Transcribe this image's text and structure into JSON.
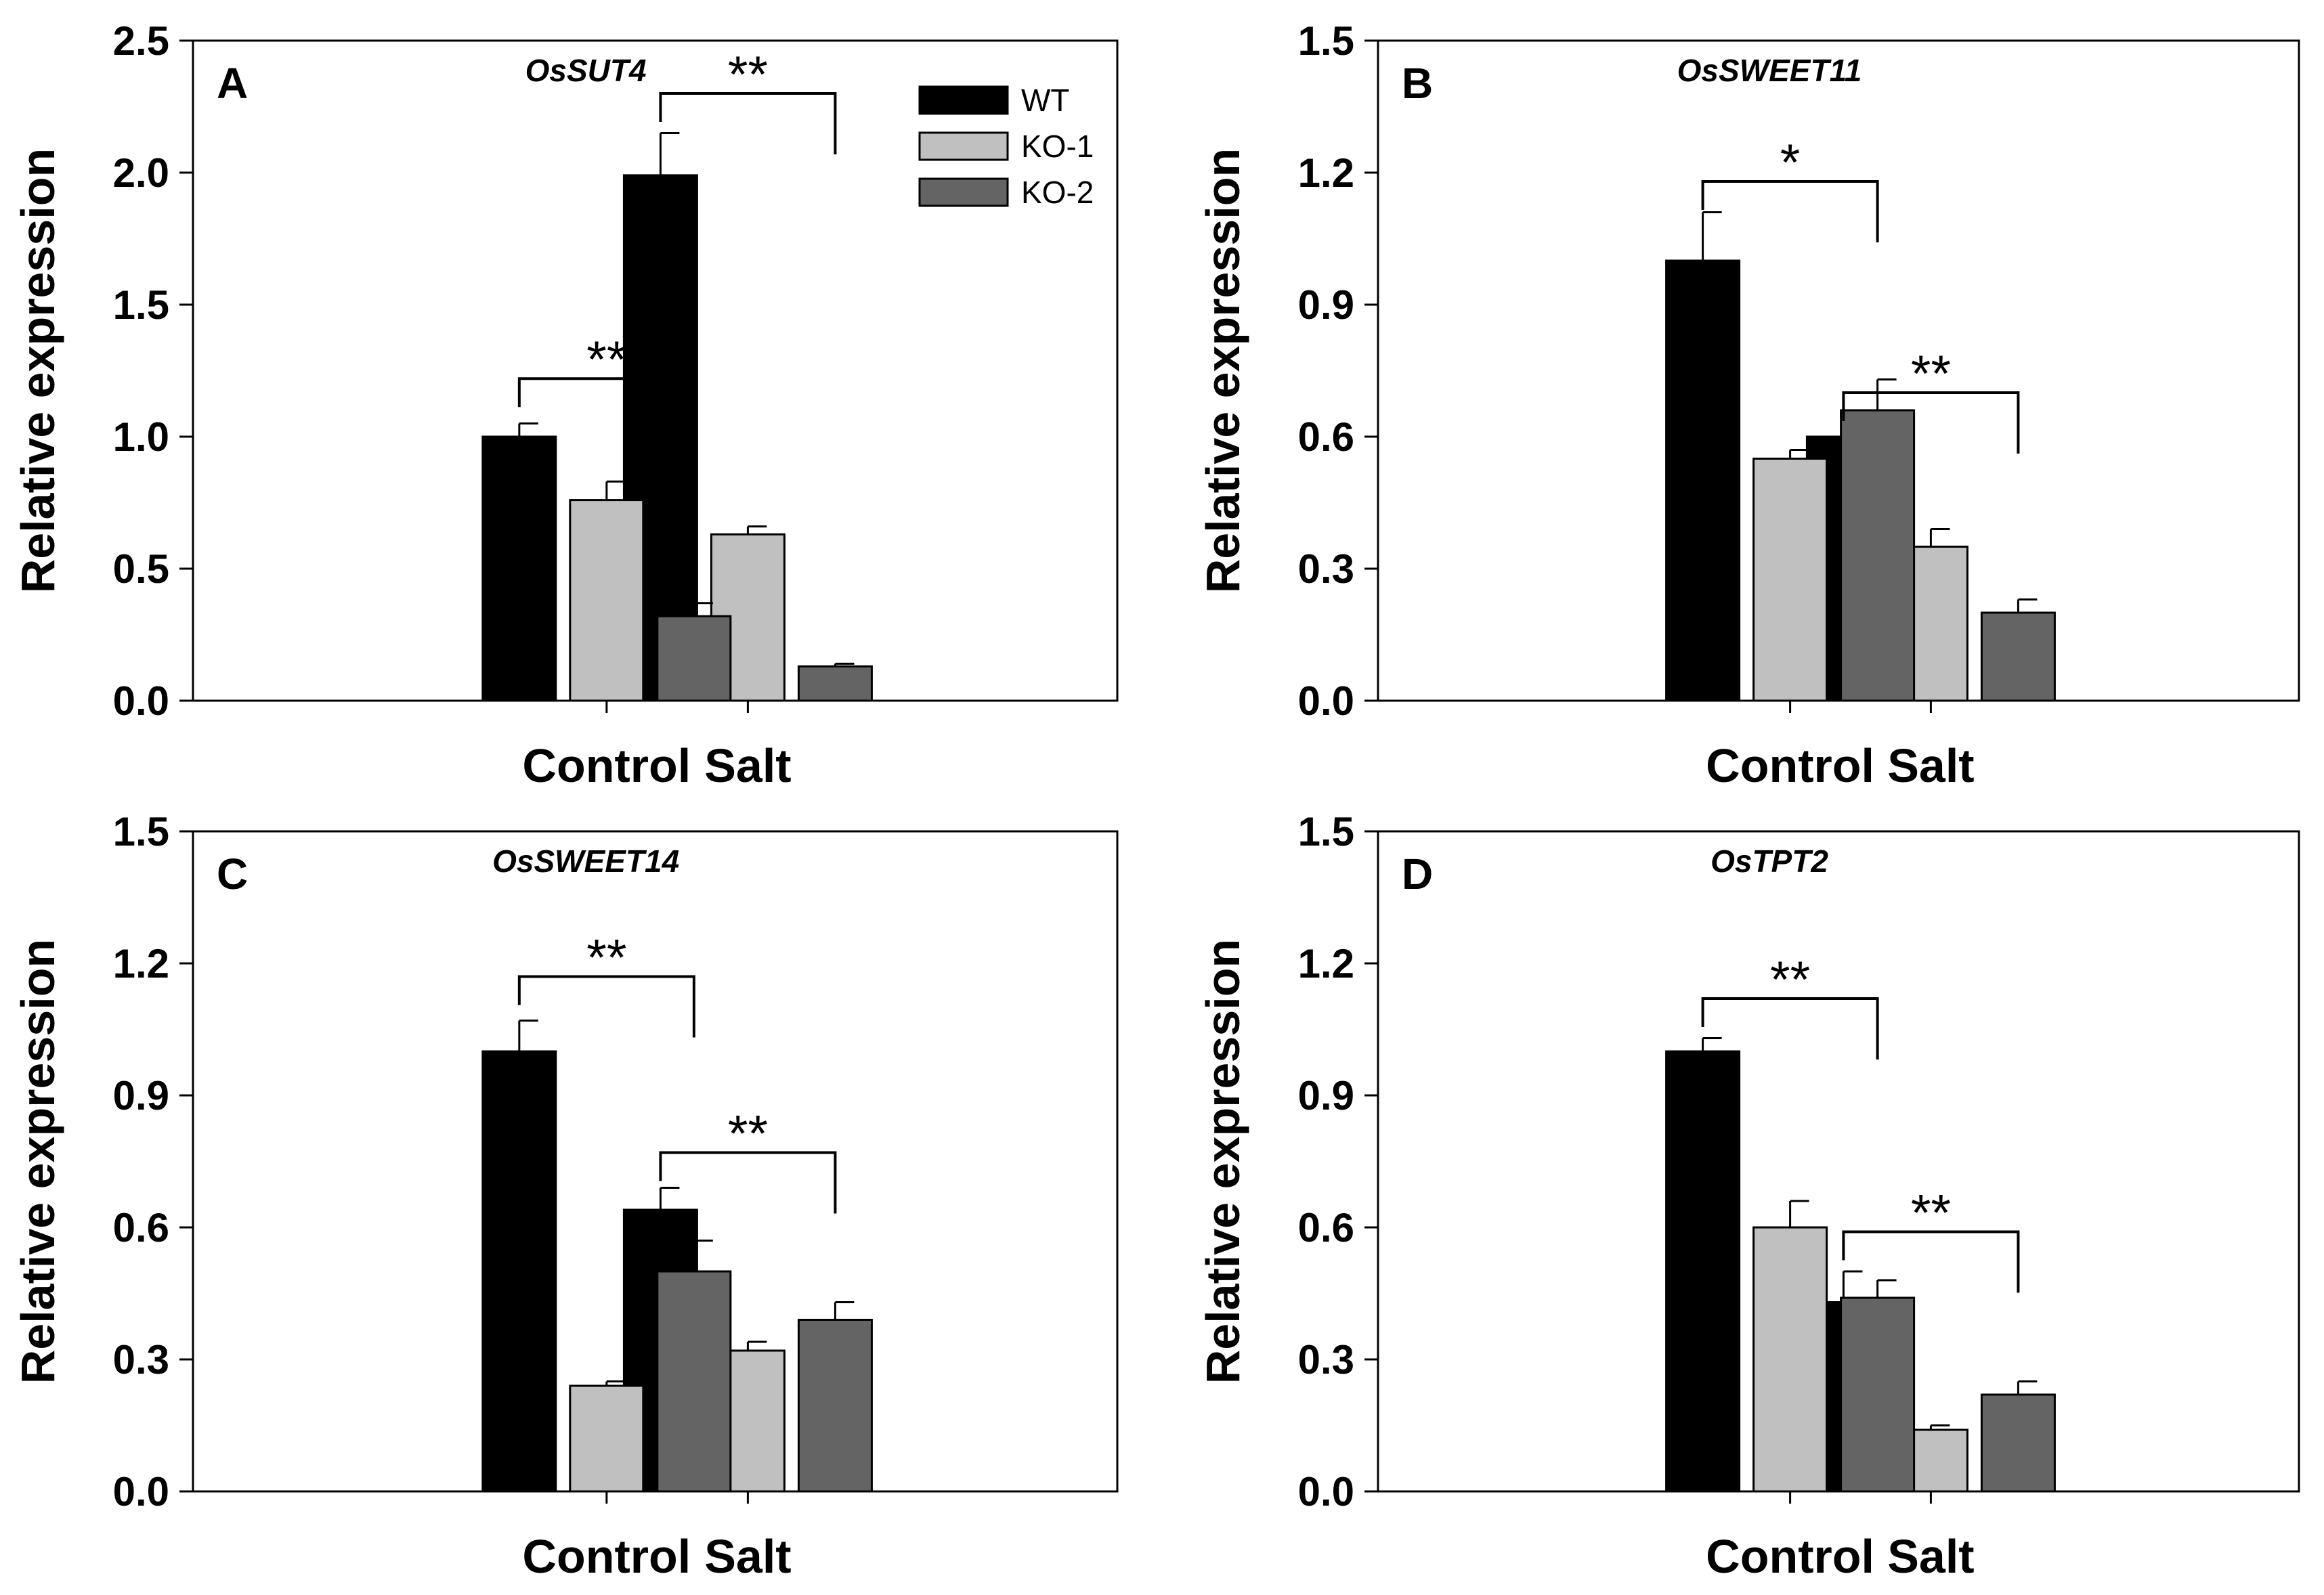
{
  "legend": [
    {
      "name": "WT",
      "color": "#000000"
    },
    {
      "name": "KO-1",
      "color": "#c0c0c0"
    },
    {
      "name": "KO-2",
      "color": "#646464"
    }
  ],
  "chart_data": [
    {
      "type": "bar",
      "panel_label": "A",
      "title": "OsSUT4",
      "ylabel": "Relative expression",
      "xlabel": "",
      "categories": [
        "Control",
        "Salt"
      ],
      "ylim": [
        0,
        2.5
      ],
      "yticks": [
        "0.0",
        "0.5",
        "1.0",
        "1.5",
        "2.0",
        "2.5"
      ],
      "series": [
        {
          "name": "WT",
          "values": [
            1.0,
            1.99
          ],
          "errors": [
            0.05,
            0.16
          ]
        },
        {
          "name": "KO-1",
          "values": [
            0.76,
            0.63
          ],
          "errors": [
            0.07,
            0.03
          ]
        },
        {
          "name": "KO-2",
          "values": [
            0.32,
            0.13
          ],
          "errors": [
            0.05,
            0.01
          ]
        }
      ],
      "significance": [
        {
          "category": "Control",
          "label": "**",
          "bracket_y": 1.22
        },
        {
          "category": "Salt",
          "label": "**",
          "bracket_y": 2.3
        }
      ],
      "legend_position": "top-right"
    },
    {
      "type": "bar",
      "panel_label": "B",
      "title": "OsSWEET11",
      "ylabel": "Relative expression",
      "xlabel": "",
      "categories": [
        "Control",
        "Salt"
      ],
      "ylim": [
        0,
        1.5
      ],
      "yticks": [
        "0.0",
        "0.3",
        "0.6",
        "0.9",
        "1.2",
        "1.5"
      ],
      "series": [
        {
          "name": "WT",
          "values": [
            1.0,
            0.6
          ],
          "errors": [
            0.11,
            0.04
          ]
        },
        {
          "name": "KO-1",
          "values": [
            0.55,
            0.35
          ],
          "errors": [
            0.02,
            0.04
          ]
        },
        {
          "name": "KO-2",
          "values": [
            0.66,
            0.2
          ],
          "errors": [
            0.07,
            0.03
          ]
        }
      ],
      "significance": [
        {
          "category": "Control",
          "label": "*",
          "bracket_y": 1.18
        },
        {
          "category": "Salt",
          "label": "**",
          "bracket_y": 0.7
        }
      ]
    },
    {
      "type": "bar",
      "panel_label": "C",
      "title": "OsSWEET14",
      "ylabel": "Relative expression",
      "xlabel": "",
      "categories": [
        "Control",
        "Salt"
      ],
      "ylim": [
        0,
        1.5
      ],
      "yticks": [
        "0.0",
        "0.3",
        "0.6",
        "0.9",
        "1.2",
        "1.5"
      ],
      "series": [
        {
          "name": "WT",
          "values": [
            1.0,
            0.64
          ],
          "errors": [
            0.07,
            0.05
          ]
        },
        {
          "name": "KO-1",
          "values": [
            0.24,
            0.32
          ],
          "errors": [
            0.01,
            0.02
          ]
        },
        {
          "name": "KO-2",
          "values": [
            0.5,
            0.39
          ],
          "errors": [
            0.07,
            0.04
          ]
        }
      ],
      "significance": [
        {
          "category": "Control",
          "label": "**",
          "bracket_y": 1.17
        },
        {
          "category": "Salt",
          "label": "**",
          "bracket_y": 0.77
        }
      ]
    },
    {
      "type": "bar",
      "panel_label": "D",
      "title": "OsTPT2",
      "ylabel": "Relative expression",
      "xlabel": "",
      "categories": [
        "Control",
        "Salt"
      ],
      "ylim": [
        0,
        1.5
      ],
      "yticks": [
        "0.0",
        "0.3",
        "0.6",
        "0.9",
        "1.2",
        "1.5"
      ],
      "series": [
        {
          "name": "WT",
          "values": [
            1.0,
            0.43
          ],
          "errors": [
            0.03,
            0.07
          ]
        },
        {
          "name": "KO-1",
          "values": [
            0.6,
            0.14
          ],
          "errors": [
            0.06,
            0.01
          ]
        },
        {
          "name": "KO-2",
          "values": [
            0.44,
            0.22
          ],
          "errors": [
            0.04,
            0.03
          ]
        }
      ],
      "significance": [
        {
          "category": "Control",
          "label": "**",
          "bracket_y": 1.12
        },
        {
          "category": "Salt",
          "label": "**",
          "bracket_y": 0.59
        }
      ]
    }
  ]
}
